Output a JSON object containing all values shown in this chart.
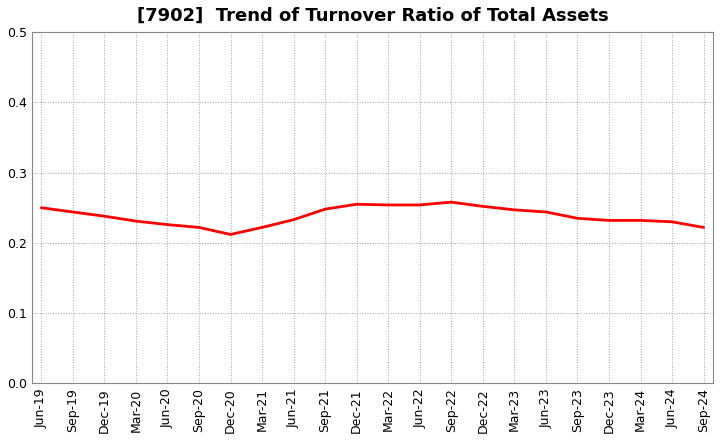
{
  "title": "[7902]  Trend of Turnover Ratio of Total Assets",
  "x_labels": [
    "Jun-19",
    "Sep-19",
    "Dec-19",
    "Mar-20",
    "Jun-20",
    "Sep-20",
    "Dec-20",
    "Mar-21",
    "Jun-21",
    "Sep-21",
    "Dec-21",
    "Mar-22",
    "Jun-22",
    "Sep-22",
    "Dec-22",
    "Mar-23",
    "Jun-23",
    "Sep-23",
    "Dec-23",
    "Mar-24",
    "Jun-24",
    "Sep-24"
  ],
  "values": [
    0.25,
    0.244,
    0.238,
    0.231,
    0.226,
    0.222,
    0.212,
    0.222,
    0.233,
    0.248,
    0.255,
    0.254,
    0.254,
    0.258,
    0.252,
    0.247,
    0.244,
    0.235,
    0.232,
    0.232,
    0.23,
    0.222
  ],
  "line_color": "#FF0000",
  "ylim": [
    0.0,
    0.5
  ],
  "yticks": [
    0.0,
    0.1,
    0.2,
    0.3,
    0.4,
    0.5
  ],
  "grid_color": "#888888",
  "background_color": "#FFFFFF",
  "title_fontsize": 13,
  "tick_fontsize": 9
}
